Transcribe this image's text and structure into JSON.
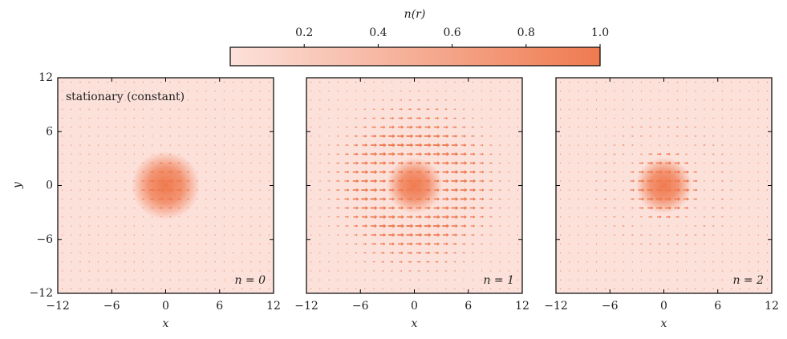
{
  "chart_data": {
    "type": "quiver",
    "colorbar": {
      "label": "n(r)",
      "lim": [
        0,
        1
      ],
      "ticks": [
        0.2,
        0.4,
        0.6,
        0.8,
        {
          "value": 1,
          "label": "1.0"
        }
      ],
      "colors": [
        "#fce1db",
        "#ef7a4f"
      ]
    },
    "xlabel": "x",
    "ylabel": "y",
    "xlim": [
      -12,
      12
    ],
    "ylim": [
      -12,
      12
    ],
    "xticks": [
      {
        "value": -12,
        "label": "−12"
      },
      {
        "value": -6,
        "label": "−6"
      },
      0,
      6,
      12
    ],
    "yticks": [
      {
        "value": -12,
        "label": "−12"
      },
      {
        "value": -6,
        "label": "−6"
      },
      0,
      6,
      12
    ],
    "panels": [
      {
        "annotation": "stationary (constant)",
        "label": "n = 0"
      },
      {
        "label": "n = 1"
      },
      {
        "label": "n = 2"
      }
    ]
  }
}
